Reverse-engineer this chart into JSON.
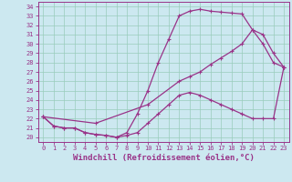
{
  "xlabel": "Windchill (Refroidissement éolien,°C)",
  "bg_color": "#cce8f0",
  "line_color": "#993388",
  "xlim": [
    -0.5,
    23.5
  ],
  "ylim": [
    19.5,
    34.5
  ],
  "yticks": [
    20,
    21,
    22,
    23,
    24,
    25,
    26,
    27,
    28,
    29,
    30,
    31,
    32,
    33,
    34
  ],
  "xticks": [
    0,
    1,
    2,
    3,
    4,
    5,
    6,
    7,
    8,
    9,
    10,
    11,
    12,
    13,
    14,
    15,
    16,
    17,
    18,
    19,
    20,
    21,
    22,
    23
  ],
  "curve_upper_x": [
    0,
    1,
    2,
    3,
    4,
    5,
    6,
    7,
    8,
    9,
    10,
    11,
    12,
    13,
    14,
    15,
    16,
    17,
    18,
    19,
    20,
    21,
    22,
    23
  ],
  "curve_upper_y": [
    22.2,
    21.2,
    21.0,
    21.0,
    20.5,
    20.3,
    20.2,
    20.0,
    20.5,
    22.5,
    25.0,
    28.0,
    30.5,
    33.0,
    33.5,
    33.7,
    33.5,
    33.4,
    33.3,
    33.2,
    31.5,
    30.0,
    28.0,
    27.5
  ],
  "curve_lower_x": [
    0,
    1,
    2,
    3,
    4,
    5,
    6,
    7,
    8,
    9,
    10,
    11,
    12,
    13,
    14,
    15,
    16,
    17,
    18,
    19,
    20,
    21,
    22,
    23
  ],
  "curve_lower_y": [
    22.2,
    21.2,
    21.0,
    21.0,
    20.5,
    20.3,
    20.2,
    20.0,
    20.2,
    20.5,
    21.5,
    22.5,
    23.5,
    24.5,
    24.8,
    24.5,
    24.0,
    23.5,
    23.0,
    22.5,
    22.0,
    22.0,
    22.0,
    27.5
  ],
  "curve_mid_x": [
    0,
    5,
    10,
    13,
    14,
    15,
    16,
    17,
    18,
    19,
    20,
    21,
    22,
    23
  ],
  "curve_mid_y": [
    22.2,
    21.5,
    23.5,
    26.0,
    26.5,
    27.0,
    27.8,
    28.5,
    29.2,
    30.0,
    31.5,
    31.0,
    29.0,
    27.5
  ],
  "grid_color": "#99ccbb",
  "tick_fontsize": 5.0,
  "xlabel_fontsize": 6.5,
  "linewidth": 0.9,
  "markersize": 3.5
}
